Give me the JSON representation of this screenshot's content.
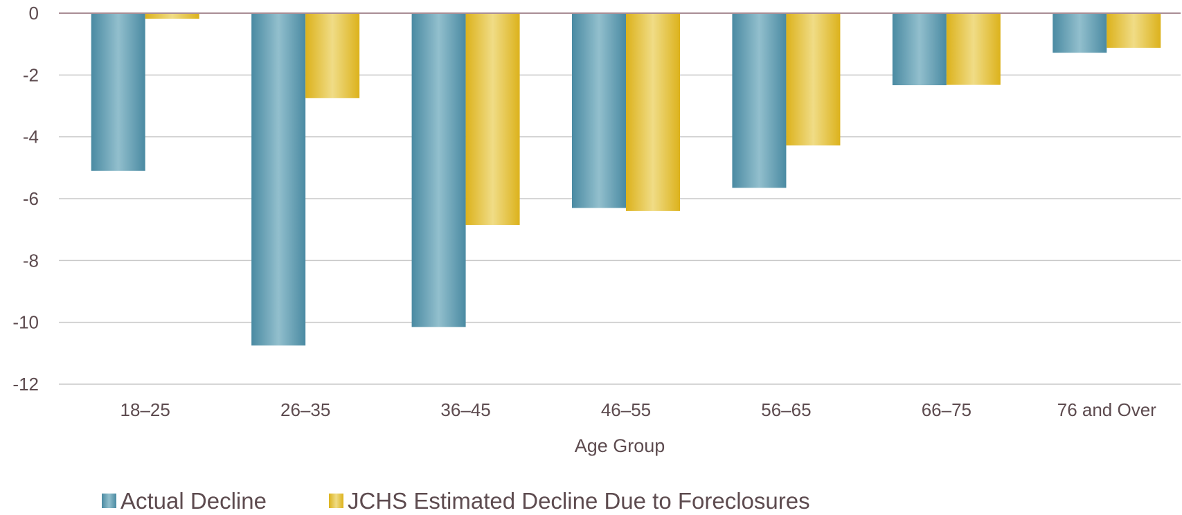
{
  "chart_data": {
    "type": "bar",
    "title": "",
    "xlabel": "Age Group",
    "ylabel": "",
    "categories": [
      "18–25",
      "26–35",
      "36–45",
      "46–55",
      "56–65",
      "66–75",
      "76 and Over"
    ],
    "series": [
      {
        "name": "Actual Decline",
        "values": [
          -5.1,
          -10.75,
          -10.15,
          -6.3,
          -5.65,
          -2.33,
          -1.28
        ],
        "color": "#5e9bb1"
      },
      {
        "name": "JCHS Estimated Decline Due to Foreclosures",
        "values": [
          -0.18,
          -2.75,
          -6.85,
          -6.4,
          -4.28,
          -2.32,
          -1.12
        ],
        "color": "#e2bd2e"
      }
    ],
    "yticks": [
      0,
      -2,
      -4,
      -6,
      -8,
      -10,
      -12
    ],
    "ylim": [
      -12,
      0
    ],
    "grid": true,
    "legend_position": "bottom-left"
  }
}
